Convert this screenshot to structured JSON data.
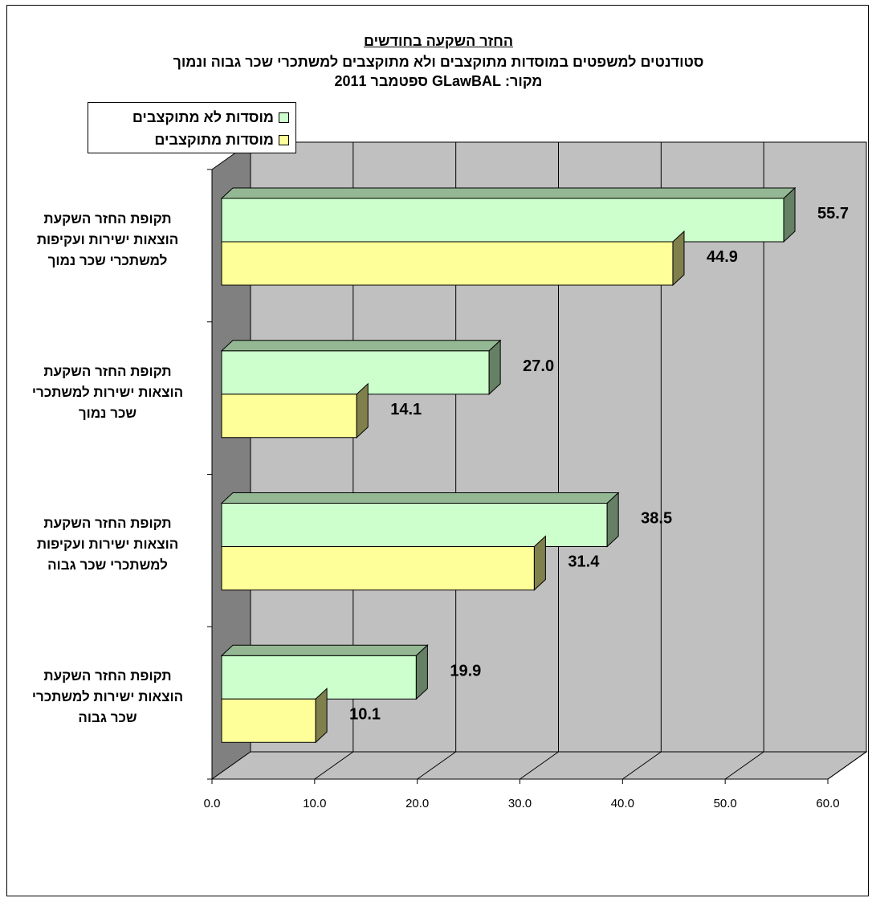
{
  "chart_data": {
    "type": "bar",
    "orientation": "horizontal",
    "title": "החזר השקעה בחודשים",
    "subtitle": "סטודנטים למשפטים במוסדות מתוקצבים ולא מתוקצבים למשתכרי שכר גבוה ונמוך",
    "source": "מקור: GLawBAL ספטמבר 2011",
    "categories": [
      "תקופת החזר השקעת הוצאות ישירות ועקיפות למשתכרי שכר נמוך",
      "תקופת החזר השקעת הוצאות ישירות למשתכרי שכר נמוך",
      "תקופת החזר השקעת הוצאות ישירות ועקיפות למשתכרי שכר גבוה",
      "תקופת החזר השקעת הוצאות ישירות למשתכרי שכר גבוה"
    ],
    "category_lines": [
      [
        "תקופת החזר השקעת",
        "הוצאות ישירות ועקיפות",
        "למשתכרי שכר נמוך"
      ],
      [
        "תקופת החזר השקעת",
        "הוצאות ישירות למשתכרי",
        "שכר נמוך"
      ],
      [
        "תקופת החזר השקעת",
        "הוצאות ישירות ועקיפות",
        "למשתכרי שכר גבוה"
      ],
      [
        "תקופת החזר השקעת",
        "הוצאות ישירות למשתכרי",
        "שכר גבוה"
      ]
    ],
    "series": [
      {
        "name": "מוסדות לא מתוקצבים",
        "values": [
          55.7,
          27.0,
          38.5,
          19.9
        ],
        "labels": [
          "55.7",
          "27.0",
          "38.5",
          "19.9"
        ],
        "color": "#ccffcc"
      },
      {
        "name": "מוסדות מתוקצבים",
        "values": [
          44.9,
          14.1,
          31.4,
          10.1
        ],
        "labels": [
          "44.9",
          "14.1",
          "31.4",
          "10.1"
        ],
        "color": "#ffff99"
      }
    ],
    "xlim": [
      0,
      60
    ],
    "xticks": [
      "0.0",
      "10.0",
      "20.0",
      "30.0",
      "40.0",
      "50.0",
      "60.0"
    ],
    "grid": true,
    "legend_position": "top-left",
    "style": "3d",
    "wall_color": "#c0c0c0",
    "side_wall_color": "#808080"
  }
}
